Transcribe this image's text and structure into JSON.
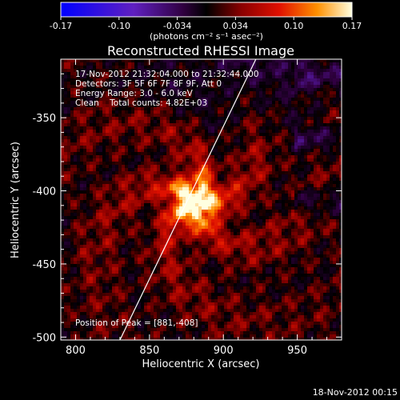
{
  "chart_data": {
    "type": "heatmap",
    "title": "Reconstructed RHESSI Image",
    "xlabel": "Heliocentric X (arcsec)",
    "ylabel": "Heliocentric Y (arcsec)",
    "xlim": [
      790,
      980
    ],
    "ylim": [
      -502,
      -310
    ],
    "xticks": [
      800,
      850,
      900,
      950
    ],
    "yticks": [
      -350,
      -400,
      -450,
      -500
    ],
    "colorbar": {
      "ticks": [
        "-0.17",
        "-0.10",
        "-0.034",
        "0.034",
        "0.10",
        "0.17"
      ],
      "range": [
        -0.17,
        0.17
      ],
      "unit_label": "(photons cm⁻² s⁻¹ asec⁻²)"
    },
    "annotations": {
      "time_range": "17-Nov-2012 21:32:04.000 to 21:32:44.000",
      "detectors": "Detectors: 3F 5F 6F 7F 8F 9F, Att 0",
      "energy": "Energy Range: 3.0 - 6.0 keV",
      "clean": "Clean    Total counts: 4.82E+03",
      "peak_position": "Position of Peak = [881,-408]"
    },
    "peak": {
      "x": 881,
      "y": -408,
      "value": 0.17
    },
    "limb_line": [
      [
        830,
        -502
      ],
      [
        922,
        -310
      ]
    ],
    "footer_timestamp": "18-Nov-2012 00:15"
  }
}
